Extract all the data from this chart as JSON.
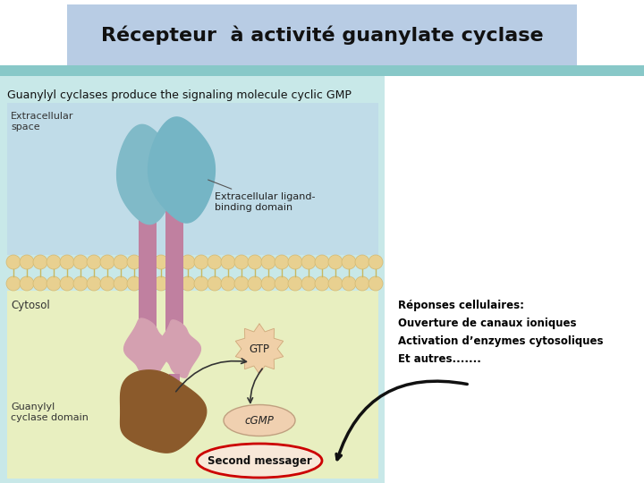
{
  "title": "Récepteur  à activité guanylate cyclase",
  "title_bg": "#b8cce4",
  "title_fontsize": 16,
  "slide_bg": "#ffffff",
  "diagram_subtitle": "Guanylyl cyclases produce the signaling molecule cyclic GMP",
  "membrane_bead_color": "#d4b870",
  "membrane_bead_fill": "#e8d090",
  "receptor_stem_color": "#c080a0",
  "receptor_top_color_l": "#7ab8c8",
  "receptor_top_color_r": "#80bcc8",
  "guanylyl_domain_color": "#8b5a2b",
  "kinase_domain_color": "#d4a0b0",
  "label_extracellular": "Extracellular\nspace",
  "label_cytosol": "Cytosol",
  "label_ligand_binding": "Extracellular ligand-\nbinding domain",
  "label_guanylyl": "Guanylyl\ncyclase domain",
  "label_gtp": "GTP",
  "label_cgmp": "cGMP",
  "label_second_messager": "Second messager",
  "responses_text": "Réponses cellulaires:\nOuverture de canaux ioniques\nActivation d’enzymes cytosoliques\nEt autres.......",
  "responses_fontsize": 8.5,
  "responses_color": "#000000",
  "arrow_color": "#111111",
  "ellipse_color": "#cc0000"
}
